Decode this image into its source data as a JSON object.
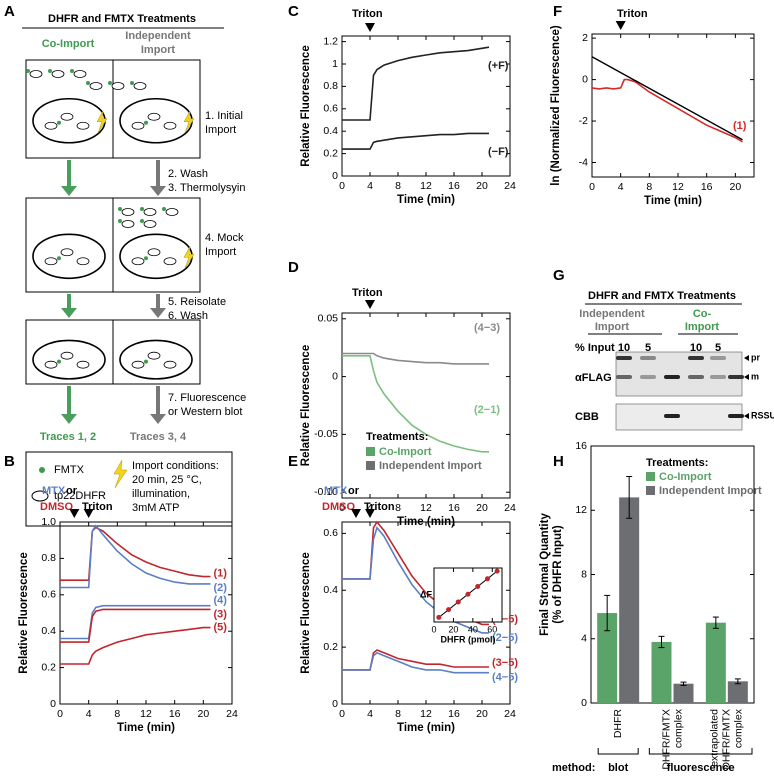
{
  "panel_a": {
    "label": "A",
    "title": "DHFR and FMTX Treatments",
    "co_import": "Co-Import",
    "independent_import": [
      "Independent",
      "Import"
    ],
    "steps": [
      [
        "1. Initial",
        "Import"
      ],
      [
        "2. Wash",
        "3. Thermolysyin"
      ],
      [
        "4. Mock",
        "Import"
      ],
      [
        "5. Reisolate",
        "6. Wash"
      ],
      [
        "7. Fluorescence",
        "or Western blot"
      ]
    ],
    "traces": [
      "Traces 1, 2",
      "Traces 3, 4"
    ],
    "legend": {
      "fmtx": "FMTX",
      "protein": "tp22DHFR",
      "conditions": [
        "Import conditions:",
        "20 min, 25 °C,",
        "illumination,",
        "3mM ATP"
      ]
    }
  },
  "panel_g": {
    "label": "G",
    "title": "DHFR and FMTX Treatments",
    "groups": [
      [
        "Independent",
        "Import"
      ],
      [
        "Co-",
        "Import"
      ]
    ],
    "input_label": "% Input",
    "inputs": [
      10,
      5,
      10,
      5
    ],
    "rows": [
      "αFLAG",
      "CBB"
    ],
    "bands": [
      "pr",
      "m",
      "RSSU"
    ]
  },
  "chart_data": [
    {
      "type": "line",
      "label": "B",
      "xlabel": "Time (min)",
      "ylabel": "Relative Fluorescence",
      "xlim": [
        0,
        24
      ],
      "xticks": [
        0,
        4,
        8,
        12,
        16,
        20,
        24
      ],
      "ylim": [
        0,
        1
      ],
      "yticks": [
        0,
        0.2,
        0.4,
        0.6,
        0.8,
        {
          "value": 1,
          "label": "1.0"
        }
      ],
      "annotations": [
        {
          "text": "MTX",
          "color": "#5b7fc4"
        },
        {
          "text": "or",
          "color": "#000000"
        },
        {
          "text": "DMSO",
          "color": "#c0272d"
        },
        {
          "text": "Triton",
          "color": "#000000"
        }
      ],
      "arrows_at": [
        2,
        4
      ],
      "x": [
        0,
        1,
        2,
        3,
        4,
        4.5,
        5,
        6,
        8,
        10,
        12,
        14,
        16,
        18,
        20,
        21
      ],
      "series": [
        {
          "name": "(1)",
          "color": "#c0272d",
          "values": [
            0.68,
            0.68,
            0.68,
            0.68,
            0.68,
            0.95,
            0.97,
            0.95,
            0.88,
            0.82,
            0.78,
            0.75,
            0.73,
            0.71,
            0.7,
            0.7
          ]
        },
        {
          "name": "(2)",
          "color": "#5b7fc4",
          "values": [
            0.64,
            0.64,
            0.64,
            0.64,
            0.64,
            0.95,
            0.98,
            0.93,
            0.84,
            0.77,
            0.72,
            0.69,
            0.67,
            0.66,
            0.66,
            0.66
          ]
        },
        {
          "name": "(4)",
          "color": "#5b7fc4",
          "values": [
            0.36,
            0.36,
            0.36,
            0.36,
            0.36,
            0.5,
            0.53,
            0.54,
            0.54,
            0.54,
            0.54,
            0.54,
            0.54,
            0.54,
            0.54,
            0.54
          ]
        },
        {
          "name": "(3)",
          "color": "#c0272d",
          "values": [
            0.34,
            0.34,
            0.34,
            0.34,
            0.34,
            0.48,
            0.51,
            0.52,
            0.52,
            0.52,
            0.52,
            0.52,
            0.52,
            0.52,
            0.52,
            0.52
          ]
        },
        {
          "name": "(5)",
          "color": "#c0272d",
          "values": [
            0.22,
            0.22,
            0.22,
            0.22,
            0.22,
            0.27,
            0.29,
            0.31,
            0.34,
            0.36,
            0.38,
            0.39,
            0.4,
            0.41,
            0.42,
            0.42
          ]
        }
      ]
    },
    {
      "type": "line",
      "label": "C",
      "xlabel": "Time (min)",
      "ylabel": "Relative Fluorescence",
      "xlim": [
        0,
        24
      ],
      "xticks": [
        0,
        4,
        8,
        12,
        16,
        20,
        24
      ],
      "ylim": [
        0,
        1.25
      ],
      "yticks": [
        0,
        0.2,
        0.4,
        0.6,
        0.8,
        1,
        1.2
      ],
      "annotations": [
        {
          "text": "Triton",
          "color": "#000000"
        }
      ],
      "arrows_at": [
        4
      ],
      "x": [
        0,
        1,
        2,
        3,
        4,
        4.5,
        5,
        6,
        8,
        10,
        12,
        14,
        16,
        18,
        20,
        21
      ],
      "series": [
        {
          "name": "(+F)",
          "color": "#222222",
          "values": [
            0.5,
            0.5,
            0.5,
            0.5,
            0.5,
            0.9,
            0.95,
            0.99,
            1.03,
            1.06,
            1.08,
            1.1,
            1.11,
            1.12,
            1.14,
            1.15
          ]
        },
        {
          "name": "(−F)",
          "color": "#222222",
          "values": [
            0.24,
            0.24,
            0.24,
            0.24,
            0.24,
            0.3,
            0.31,
            0.32,
            0.34,
            0.35,
            0.36,
            0.37,
            0.37,
            0.38,
            0.38,
            0.38
          ]
        }
      ]
    },
    {
      "type": "line",
      "label": "D",
      "xlabel": "Time (min)",
      "ylabel": "Relative Fluorescence",
      "xlim": [
        0,
        24
      ],
      "xticks": [
        0,
        4,
        8,
        12,
        16,
        20,
        24
      ],
      "ylim": [
        -0.105,
        0.055
      ],
      "yticks": [
        {
          "value": -0.1,
          "label": "-0.10"
        },
        -0.05,
        0,
        0.05
      ],
      "annotations": [
        {
          "text": "Triton",
          "color": "#000000"
        }
      ],
      "arrows_at": [
        4
      ],
      "legend": {
        "title": "Treatments:",
        "items": [
          {
            "name": "Co-Import",
            "color": "#5aa469"
          },
          {
            "name": "Independent Import",
            "color": "#6d6e71"
          }
        ]
      },
      "x": [
        0,
        1,
        2,
        3,
        4,
        4.5,
        5,
        6,
        8,
        10,
        12,
        14,
        16,
        18,
        20,
        21
      ],
      "series": [
        {
          "name": "(4−3)",
          "color": "#8a8a8a",
          "values": [
            0.02,
            0.02,
            0.02,
            0.02,
            0.02,
            0.02,
            0.018,
            0.016,
            0.014,
            0.013,
            0.012,
            0.012,
            0.011,
            0.011,
            0.011,
            0.011
          ]
        },
        {
          "name": "(2−1)",
          "color": "#7cbf7f",
          "values": [
            0.018,
            0.018,
            0.018,
            0.018,
            0.018,
            0.005,
            -0.005,
            -0.015,
            -0.03,
            -0.042,
            -0.05,
            -0.056,
            -0.06,
            -0.063,
            -0.065,
            -0.065
          ]
        }
      ]
    },
    {
      "type": "line",
      "label": "E",
      "xlabel": "Time (min)",
      "ylabel": "Relative Fluorescence",
      "xlim": [
        0,
        24
      ],
      "xticks": [
        0,
        4,
        8,
        12,
        16,
        20,
        24
      ],
      "ylim": [
        0,
        0.64
      ],
      "yticks": [
        0,
        0.2,
        0.4,
        0.6
      ],
      "annotations": [
        {
          "text": "MTX",
          "color": "#5b7fc4"
        },
        {
          "text": "or",
          "color": "#000000"
        },
        {
          "text": "DMSO",
          "color": "#c0272d"
        },
        {
          "text": "Triton",
          "color": "#000000"
        }
      ],
      "arrows_at": [
        2,
        4
      ],
      "x": [
        0,
        1,
        2,
        3,
        4,
        4.5,
        5,
        6,
        8,
        10,
        12,
        14,
        16,
        18,
        20,
        21
      ],
      "series": [
        {
          "name": "(1−5)",
          "color": "#c0272d",
          "values": [
            0.44,
            0.44,
            0.44,
            0.44,
            0.44,
            0.62,
            0.64,
            0.61,
            0.53,
            0.45,
            0.39,
            0.35,
            0.32,
            0.3,
            0.28,
            0.28
          ]
        },
        {
          "name": "(2−5)",
          "color": "#5b7fc4",
          "values": [
            0.44,
            0.44,
            0.44,
            0.44,
            0.44,
            0.58,
            0.62,
            0.59,
            0.5,
            0.42,
            0.36,
            0.32,
            0.29,
            0.27,
            0.25,
            0.25
          ]
        },
        {
          "name": "(3−5)",
          "color": "#c0272d",
          "values": [
            0.12,
            0.12,
            0.12,
            0.12,
            0.12,
            0.18,
            0.19,
            0.18,
            0.16,
            0.15,
            0.14,
            0.14,
            0.13,
            0.13,
            0.13,
            0.13
          ]
        },
        {
          "name": "(4−5)",
          "color": "#5b7fc4",
          "values": [
            0.12,
            0.12,
            0.12,
            0.12,
            0.12,
            0.17,
            0.18,
            0.17,
            0.15,
            0.13,
            0.12,
            0.12,
            0.11,
            0.11,
            0.11,
            0.11
          ]
        }
      ]
    },
    {
      "type": "scatter",
      "xlabel": "DHFR (pmol)",
      "ylabel": "ΔF",
      "xlim": [
        0,
        70
      ],
      "xticks": [
        0,
        20,
        40,
        60
      ],
      "ylim": [
        0,
        0.35
      ],
      "color": "#c0272d",
      "x": [
        5,
        15,
        25,
        35,
        45,
        55,
        65
      ],
      "values": [
        0.03,
        0.08,
        0.13,
        0.18,
        0.23,
        0.28,
        0.33
      ]
    },
    {
      "type": "line",
      "label": "F",
      "xlabel": "Time (min)",
      "ylabel": "ln (Normalized Fluorescence)",
      "xlim": [
        0,
        22.6
      ],
      "xticks": [
        0,
        4,
        8,
        12,
        16,
        20
      ],
      "ylim": [
        -4.7,
        2.2
      ],
      "yticks": [
        -4,
        -2,
        0,
        2
      ],
      "annotations": [
        {
          "text": "Triton",
          "color": "#000000"
        }
      ],
      "arrows_at": [
        4
      ],
      "x": [
        0,
        1,
        2,
        3,
        4,
        4.5,
        5,
        6,
        8,
        10,
        12,
        14,
        16,
        18,
        20,
        21
      ],
      "series": [
        {
          "name": "(1)",
          "color": "#d42a2a",
          "values": [
            -0.4,
            -0.45,
            -0.4,
            -0.45,
            -0.4,
            0,
            0,
            -0.1,
            -0.6,
            -1,
            -1.4,
            -1.8,
            -2.2,
            -2.5,
            -2.8,
            -3
          ]
        }
      ],
      "fit": {
        "color": "#000000",
        "x": [
          0,
          21
        ],
        "values": [
          1.1,
          -2.9
        ]
      }
    },
    {
      "type": "bar",
      "label": "H",
      "ylabel": [
        "Final Stromal Quantity",
        "(% of DHFR Input)"
      ],
      "ylim": [
        0,
        16
      ],
      "yticks": [
        0,
        4,
        8,
        12,
        16
      ],
      "categories": [
        [
          "DHFR"
        ],
        [
          "DHFR/FMTX",
          "complex"
        ],
        [
          "extrapolated",
          "DHFR/FMTX",
          "complex"
        ]
      ],
      "legend_title": "Treatments:",
      "series": [
        {
          "name": "Co-Import",
          "color": "#5aa469",
          "values": [
            5.6,
            3.8,
            5
          ],
          "errors": [
            1.1,
            0.35,
            0.35
          ]
        },
        {
          "name": "Independent Import",
          "color": "#6d6e71",
          "values": [
            12.8,
            1.2,
            1.35
          ],
          "errors": [
            1.3,
            0.1,
            0.15
          ]
        }
      ],
      "method": {
        "label": "method:",
        "groups": [
          "blot",
          "fluorescence"
        ]
      }
    }
  ]
}
